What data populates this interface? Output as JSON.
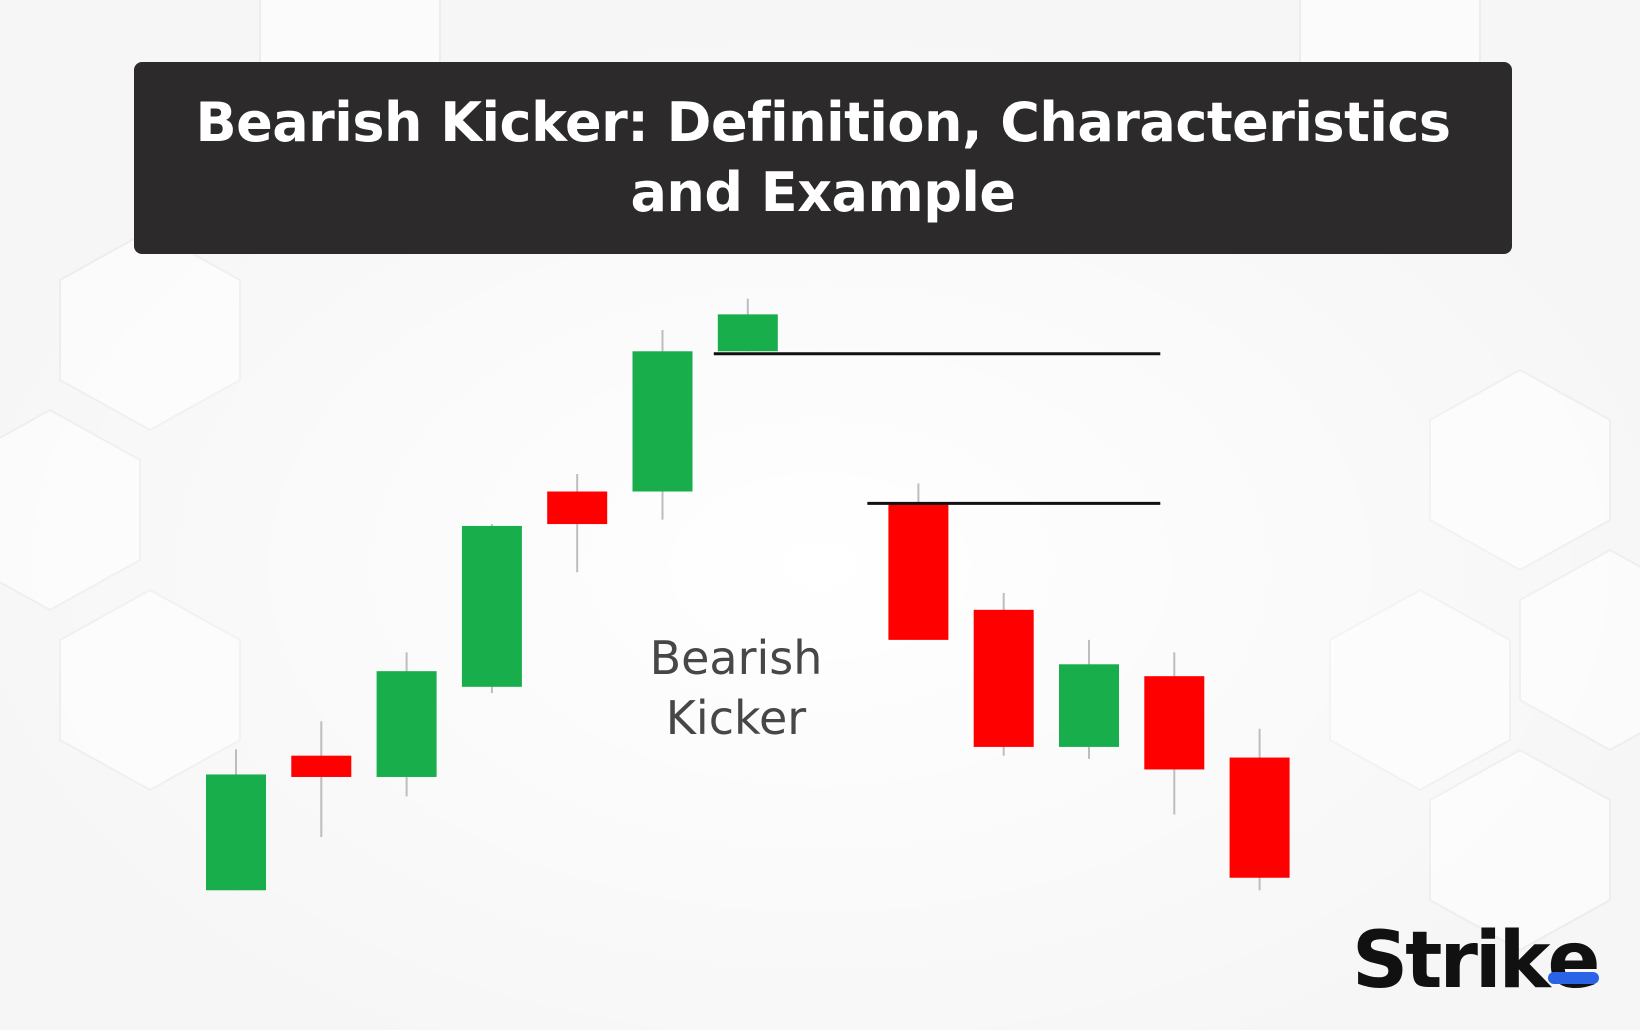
{
  "title": {
    "line1": "Bearish Kicker: Definition, Characteristics",
    "line2": "and Example"
  },
  "annotation": {
    "line1": "Bearish",
    "line2": "Kicker"
  },
  "brand": {
    "main": "Stri",
    "k": "k",
    "e": "e",
    "accent_color": "#2a63e6"
  },
  "colors": {
    "bullish": "#19ae4c",
    "bearish": "#fe0000",
    "wick": "#bdbdbd",
    "line": "#111111"
  },
  "chart_data": {
    "type": "candlestick",
    "title": "",
    "xlabel": "",
    "ylabel": "",
    "grid": false,
    "ylim": [
      0,
      100
    ],
    "candles": [
      {
        "index": 1,
        "open": 10.5,
        "close": 29.0,
        "high": 33.0,
        "low": 10.5,
        "direction": "bullish"
      },
      {
        "index": 2,
        "open": 32.0,
        "close": 28.6,
        "high": 37.5,
        "low": 19.0,
        "direction": "bearish"
      },
      {
        "index": 3,
        "open": 28.6,
        "close": 45.5,
        "high": 48.5,
        "low": 25.5,
        "direction": "bullish"
      },
      {
        "index": 4,
        "open": 43.0,
        "close": 68.7,
        "high": 69.0,
        "low": 42.0,
        "direction": "bullish"
      },
      {
        "index": 5,
        "open": 74.2,
        "close": 69.0,
        "high": 77.0,
        "low": 61.3,
        "direction": "bearish"
      },
      {
        "index": 6,
        "open": 74.2,
        "close": 96.6,
        "high": 100.0,
        "low": 69.7,
        "direction": "bullish"
      },
      {
        "index": 7,
        "open": 96.6,
        "close": 102.5,
        "high": 105.0,
        "low": 96.6,
        "direction": "bullish"
      },
      {
        "index": 9,
        "open": 72.5,
        "close": 50.5,
        "high": 75.5,
        "low": 50.5,
        "direction": "bearish"
      },
      {
        "index": 10,
        "open": 55.3,
        "close": 33.4,
        "high": 58.0,
        "low": 32.0,
        "direction": "bearish"
      },
      {
        "index": 11,
        "open": 33.4,
        "close": 46.6,
        "high": 50.5,
        "low": 31.5,
        "direction": "bullish"
      },
      {
        "index": 12,
        "open": 44.7,
        "close": 29.8,
        "high": 48.5,
        "low": 22.6,
        "direction": "bearish"
      },
      {
        "index": 13,
        "open": 31.7,
        "close": 12.5,
        "high": 36.3,
        "low": 10.5,
        "direction": "bearish"
      }
    ],
    "levels": [
      {
        "value": 96.2,
        "from": 7,
        "to": 12
      },
      {
        "value": 72.3,
        "from": 8.8,
        "to": 12
      }
    ],
    "annotations": [
      "Bearish Kicker"
    ]
  }
}
